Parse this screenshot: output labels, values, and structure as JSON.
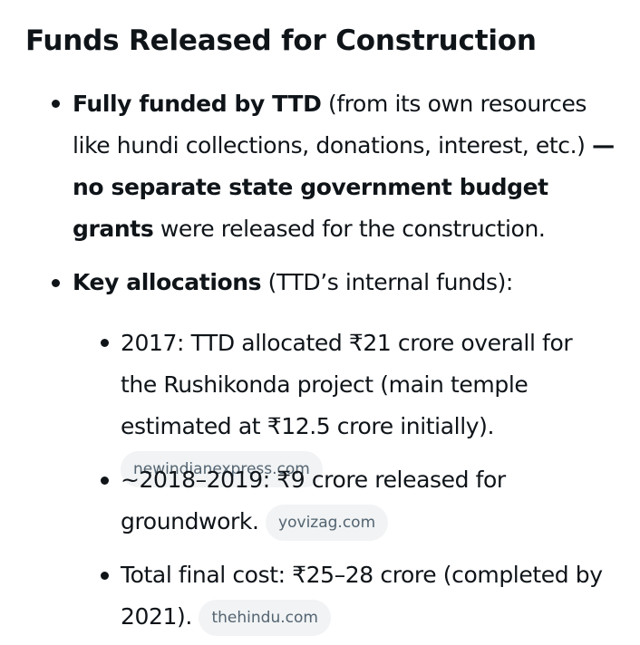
{
  "heading": "Funds Released for Construction",
  "bullets": [
    {
      "lead_bold": "Fully funded by TTD",
      "text1": " (from its own resources like hundi collections, donations, interest, etc.) ",
      "bold2": "— no separate state government budget grants",
      "text2": " were released for the construction."
    },
    {
      "lead_bold": "Key allocations",
      "text1": " (TTD’s internal funds):",
      "sub": [
        {
          "text": "2017: TTD allocated ₹21 crore overall for the Rushikonda project (main temple estimated at ₹12.5 crore initially).",
          "source": "newindianexpress.com"
        },
        {
          "text": "~2018–2019: ₹9 crore released for groundwork.",
          "source": "yovizag.com"
        },
        {
          "text": "Total final cost: ₹25–28 crore (completed by 2021).",
          "source": "thehindu.com"
        }
      ]
    }
  ]
}
